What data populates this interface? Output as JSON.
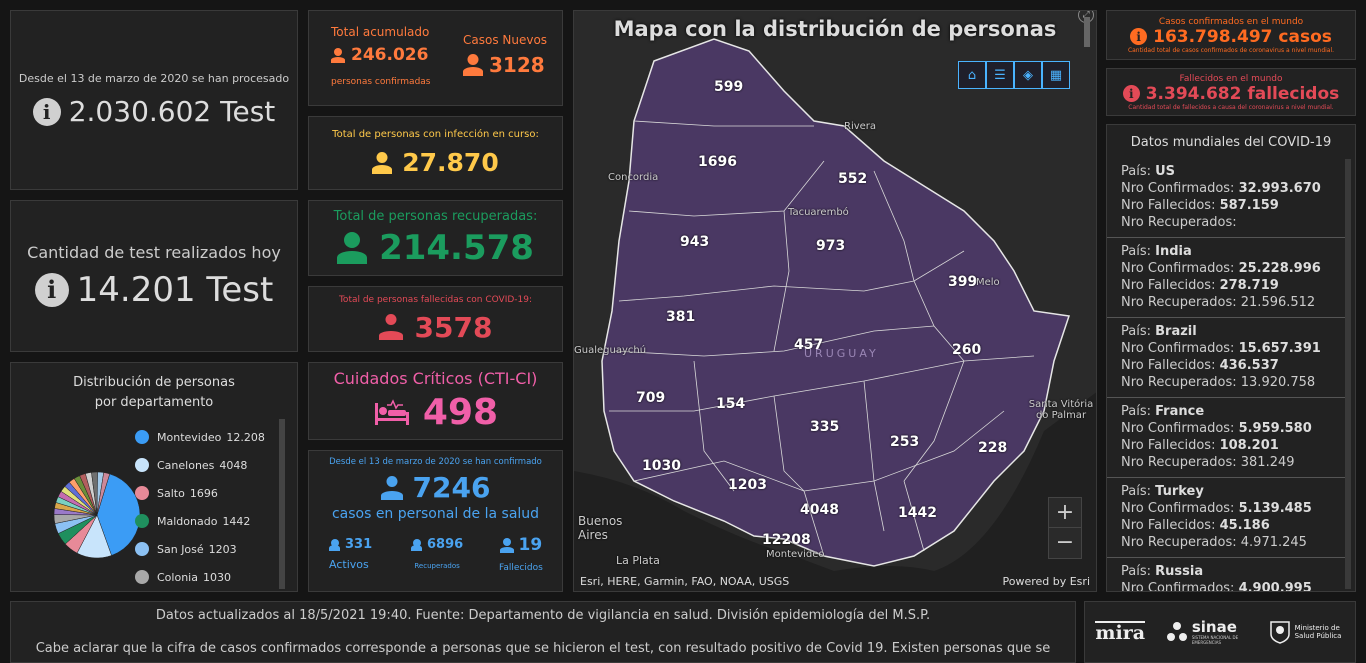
{
  "tests_total": {
    "caption": "Desde el 13 de marzo de 2020 se han procesado",
    "value": "2.030.602 Test"
  },
  "tests_today": {
    "caption": "Cantidad de test realizados hoy",
    "value": "14.201 Test"
  },
  "accumulated": {
    "title": "Total acumulado",
    "value": "246.026",
    "sub": "personas confirmadas",
    "new_title": "Casos Nuevos",
    "new_value": "3128"
  },
  "active": {
    "title": "Total de personas con infección en curso:",
    "value": "27.870"
  },
  "recovered": {
    "title": "Total de personas recuperadas:",
    "value": "214.578"
  },
  "deceased": {
    "title": "Total de personas fallecidas con COVID-19:",
    "value": "3578"
  },
  "critical": {
    "title": "Cuidados Críticos (CTI-CI)",
    "value": "498"
  },
  "health_staff": {
    "caption": "Desde el 13 de marzo de 2020 se han confirmado",
    "value": "7246",
    "subtitle": "casos en personal de la salud",
    "active_value": "331",
    "active_label": "Activos",
    "recovered_value": "6896",
    "recovered_label": "Recuperados",
    "deceased_value": "19",
    "deceased_label": "Fallecidos"
  },
  "distribution": {
    "title": "Distribución de personas por departamento",
    "legend": [
      {
        "name": "Montevideo",
        "value": "12.208",
        "color": "#3b9cf5"
      },
      {
        "name": "Canelones",
        "value": "4048",
        "color": "#c8e4fb"
      },
      {
        "name": "Salto",
        "value": "1696",
        "color": "#e78a98"
      },
      {
        "name": "Maldonado",
        "value": "1442",
        "color": "#1f8f5e"
      },
      {
        "name": "San José",
        "value": "1203",
        "color": "#8cc1f3"
      },
      {
        "name": "Colonia",
        "value": "1030",
        "color": "#a8a8a8"
      }
    ]
  },
  "map": {
    "title": "Mapa con la distribución de personas",
    "attribution": "Esri, HERE, Garmin, FAO, NOAA, USGS",
    "powered": "Powered by Esri",
    "country": "URUGUAY",
    "zoom_in": "+",
    "zoom_out": "−",
    "labels": [
      "599",
      "1696",
      "552",
      "943",
      "973",
      "399",
      "381",
      "457",
      "260",
      "709",
      "154",
      "335",
      "253",
      "228",
      "1030",
      "1203",
      "4048",
      "1442",
      "12208"
    ],
    "places": [
      "Rivera",
      "Concordia",
      "Tacuarembó",
      "Melo",
      "Gualeguaychú",
      "Santa Vitória do Palmar",
      "Buenos Aires",
      "La Plata",
      "Montevideo"
    ]
  },
  "world_confirmed": {
    "title": "Casos confirmados en el mundo",
    "value": "163.798.497 casos",
    "sub": "Cantidad total de casos confirmados de coronavirus a nivel mundial."
  },
  "world_deaths": {
    "title": "Fallecidos en el mundo",
    "value": "3.394.682 fallecidos",
    "sub": "Cantidad total de fallecidos a causa del coronavirus a nivel mundial."
  },
  "world": {
    "title": "Datos mundiales del COVID-19",
    "labels": {
      "country": "País:",
      "confirmed": "Nro Confirmados:",
      "deaths": "Nro Fallecidos:",
      "recovered": "Nro Recuperados:"
    },
    "items": [
      {
        "country": "US",
        "confirmed": "32.993.670",
        "deaths": "587.159",
        "recovered": ""
      },
      {
        "country": "India",
        "confirmed": "25.228.996",
        "deaths": "278.719",
        "recovered": "21.596.512"
      },
      {
        "country": "Brazil",
        "confirmed": "15.657.391",
        "deaths": "436.537",
        "recovered": "13.920.758"
      },
      {
        "country": "France",
        "confirmed": "5.959.580",
        "deaths": "108.201",
        "recovered": "381.249"
      },
      {
        "country": "Turkey",
        "confirmed": "5.139.485",
        "deaths": "45.186",
        "recovered": "4.971.245"
      },
      {
        "country": "Russia",
        "confirmed": "4.900.995",
        "deaths": "",
        "recovered": ""
      }
    ]
  },
  "footer": {
    "line1": "Datos actualizados al 18/5/2021 19:40. Fuente: Departamento de vigilancia en salud. División epidemiología del M.S.P.",
    "line2": "Cabe aclarar que la cifra de casos confirmados corresponde a personas que se hicieron el test, con resultado positivo de Covid 19. Existen personas que se"
  },
  "logos": {
    "mira": "mira",
    "sinae": "sinae",
    "sinae_sub": "SISTEMA NACIONAL DE EMERGENCIAS",
    "msp": "Ministerio de Salud Pública"
  }
}
